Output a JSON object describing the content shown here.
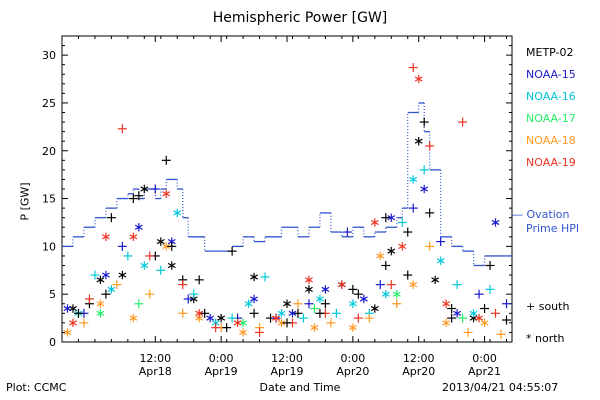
{
  "chart_data": {
    "type": "scatter",
    "title": "Hemispheric Power [GW]",
    "xlabel": "Date and Time",
    "ylabel": "P [GW]",
    "ylim": [
      0,
      32
    ],
    "yticks": [
      0,
      5,
      10,
      15,
      20,
      25,
      30
    ],
    "xlim": [
      "2013-04-17 19:00",
      "2013-04-21 05:00"
    ],
    "xticks": [
      {
        "t": "2013-04-18 12:00",
        "l1": "12:00",
        "l2": "Apr18"
      },
      {
        "t": "2013-04-19 00:00",
        "l1": "0:00",
        "l2": "Apr19"
      },
      {
        "t": "2013-04-19 12:00",
        "l1": "12:00",
        "l2": "Apr19"
      },
      {
        "t": "2013-04-20 00:00",
        "l1": "0:00",
        "l2": "Apr20"
      },
      {
        "t": "2013-04-20 12:00",
        "l1": "12:00",
        "l2": "Apr20"
      },
      {
        "t": "2013-04-21 00:00",
        "l1": "0:00",
        "l2": "Apr21"
      }
    ],
    "ovation": {
      "name": "Ovation Prime HPI",
      "legend": "— Ovation",
      "legend2": "Prime HPI",
      "color": "#3355cc",
      "values": [
        [
          "2013-04-17 19:00",
          10
        ],
        [
          "2013-04-17 21:00",
          11
        ],
        [
          "2013-04-17 23:00",
          12
        ],
        [
          "2013-04-18 01:00",
          13
        ],
        [
          "2013-04-18 03:00",
          14
        ],
        [
          "2013-04-18 05:00",
          15
        ],
        [
          "2013-04-18 07:00",
          15.5
        ],
        [
          "2013-04-18 08:00",
          16
        ],
        [
          "2013-04-18 09:00",
          15
        ],
        [
          "2013-04-18 10:00",
          16
        ],
        [
          "2013-04-18 12:00",
          15
        ],
        [
          "2013-04-18 13:00",
          16
        ],
        [
          "2013-04-18 14:00",
          17
        ],
        [
          "2013-04-18 16:00",
          16
        ],
        [
          "2013-04-18 17:00",
          13
        ],
        [
          "2013-04-18 18:00",
          11
        ],
        [
          "2013-04-18 21:00",
          9.5
        ],
        [
          "2013-04-19 00:00",
          9.5
        ],
        [
          "2013-04-19 02:00",
          10
        ],
        [
          "2013-04-19 04:00",
          11
        ],
        [
          "2013-04-19 06:00",
          10.5
        ],
        [
          "2013-04-19 08:00",
          11
        ],
        [
          "2013-04-19 11:00",
          12
        ],
        [
          "2013-04-19 14:00",
          11
        ],
        [
          "2013-04-19 16:00",
          12
        ],
        [
          "2013-04-19 18:00",
          13.5
        ],
        [
          "2013-04-19 20:00",
          11.5
        ],
        [
          "2013-04-19 22:00",
          11
        ],
        [
          "2013-04-20 00:00",
          12
        ],
        [
          "2013-04-20 02:00",
          11
        ],
        [
          "2013-04-20 04:00",
          11.5
        ],
        [
          "2013-04-20 06:00",
          12
        ],
        [
          "2013-04-20 08:00",
          13
        ],
        [
          "2013-04-20 09:00",
          14
        ],
        [
          "2013-04-20 10:00",
          24
        ],
        [
          "2013-04-20 12:00",
          25
        ],
        [
          "2013-04-20 13:00",
          22
        ],
        [
          "2013-04-20 14:00",
          18
        ],
        [
          "2013-04-20 16:00",
          11
        ],
        [
          "2013-04-20 18:00",
          10
        ],
        [
          "2013-04-20 20:00",
          9.5
        ],
        [
          "2013-04-20 22:00",
          8
        ],
        [
          "2013-04-21 00:00",
          9
        ],
        [
          "2013-04-21 03:00",
          9
        ]
      ]
    },
    "series": [
      {
        "name": "METP-02",
        "color": "#000000",
        "values": [
          [
            "2013-04-17 21:00",
            3.5
          ],
          [
            "2013-04-18 00:00",
            4
          ],
          [
            "2013-04-18 02:00",
            6.5
          ],
          [
            "2013-04-18 04:00",
            13
          ],
          [
            "2013-04-18 06:00",
            7
          ],
          [
            "2013-04-18 08:00",
            15
          ],
          [
            "2013-04-18 10:00",
            16
          ],
          [
            "2013-04-18 12:00",
            9
          ],
          [
            "2013-04-18 13:00",
            10.5
          ],
          [
            "2013-04-18 14:00",
            19
          ],
          [
            "2013-04-18 15:00",
            8
          ],
          [
            "2013-04-18 17:00",
            6.5
          ],
          [
            "2013-04-18 19:00",
            4.5
          ],
          [
            "2013-04-18 21:00",
            3
          ],
          [
            "2013-04-19 00:00",
            2.5
          ],
          [
            "2013-04-19 02:00",
            9.5
          ],
          [
            "2013-04-19 06:00",
            6.8
          ],
          [
            "2013-04-19 09:00",
            2.5
          ],
          [
            "2013-04-19 12:00",
            4
          ],
          [
            "2013-04-19 14:00",
            3
          ],
          [
            "2013-04-19 16:00",
            5.5
          ],
          [
            "2013-04-19 19:00",
            4
          ],
          [
            "2013-04-19 22:00",
            6
          ],
          [
            "2013-04-20 01:00",
            5
          ],
          [
            "2013-04-20 04:00",
            3.5
          ],
          [
            "2013-04-20 06:00",
            13
          ],
          [
            "2013-04-20 07:00",
            9.5
          ],
          [
            "2013-04-20 10:00",
            11.5
          ],
          [
            "2013-04-20 12:00",
            21
          ],
          [
            "2013-04-20 13:00",
            23
          ],
          [
            "2013-04-20 15:00",
            6.5
          ],
          [
            "2013-04-20 18:00",
            3.5
          ],
          [
            "2013-04-20 22:00",
            2.5
          ],
          [
            "2013-04-21 01:00",
            8
          ]
        ]
      },
      {
        "name": "NOAA-15",
        "color": "#1a1acc",
        "values": [
          [
            "2013-04-17 20:00",
            3.5
          ],
          [
            "2013-04-17 23:00",
            3
          ],
          [
            "2013-04-18 03:00",
            7
          ],
          [
            "2013-04-18 06:00",
            10
          ],
          [
            "2013-04-18 09:00",
            12
          ],
          [
            "2013-04-18 12:00",
            16
          ],
          [
            "2013-04-18 15:00",
            10.5
          ],
          [
            "2013-04-18 18:00",
            4.5
          ],
          [
            "2013-04-18 22:00",
            2.5
          ],
          [
            "2013-04-19 03:00",
            2.5
          ],
          [
            "2013-04-19 06:00",
            4.5
          ],
          [
            "2013-04-19 10:00",
            2.5
          ],
          [
            "2013-04-19 13:00",
            3
          ],
          [
            "2013-04-19 16:00",
            4
          ],
          [
            "2013-04-19 19:00",
            5.5
          ],
          [
            "2013-04-19 23:00",
            11.5
          ],
          [
            "2013-04-20 02:00",
            4.5
          ],
          [
            "2013-04-20 05:00",
            6
          ],
          [
            "2013-04-20 07:00",
            13
          ],
          [
            "2013-04-20 11:00",
            14
          ],
          [
            "2013-04-20 13:00",
            16
          ],
          [
            "2013-04-20 16:00",
            10.5
          ],
          [
            "2013-04-20 19:00",
            3
          ],
          [
            "2013-04-20 23:00",
            5
          ],
          [
            "2013-04-21 02:00",
            12.5
          ],
          [
            "2013-04-21 04:00",
            4
          ]
        ]
      },
      {
        "name": "NOAA-16",
        "color": "#00c8dc",
        "values": [
          [
            "2013-04-17 22:00",
            3
          ],
          [
            "2013-04-18 01:00",
            7
          ],
          [
            "2013-04-18 04:00",
            5.5
          ],
          [
            "2013-04-18 07:00",
            9
          ],
          [
            "2013-04-18 10:00",
            8
          ],
          [
            "2013-04-18 13:00",
            7.5
          ],
          [
            "2013-04-18 16:00",
            13.5
          ],
          [
            "2013-04-18 19:00",
            5
          ],
          [
            "2013-04-18 23:00",
            2
          ],
          [
            "2013-04-19 02:00",
            2.5
          ],
          [
            "2013-04-19 05:00",
            4
          ],
          [
            "2013-04-19 08:00",
            6.8
          ],
          [
            "2013-04-19 11:00",
            3
          ],
          [
            "2013-04-19 15:00",
            2.5
          ],
          [
            "2013-04-19 18:00",
            4.5
          ],
          [
            "2013-04-19 21:00",
            3
          ],
          [
            "2013-04-20 00:00",
            4
          ],
          [
            "2013-04-20 03:00",
            3
          ],
          [
            "2013-04-20 06:00",
            5
          ],
          [
            "2013-04-20 09:00",
            12.5
          ],
          [
            "2013-04-20 11:00",
            17
          ],
          [
            "2013-04-20 13:00",
            18
          ],
          [
            "2013-04-20 16:00",
            8.5
          ],
          [
            "2013-04-20 19:00",
            6
          ],
          [
            "2013-04-20 22:00",
            3
          ],
          [
            "2013-04-21 01:00",
            5.5
          ]
        ]
      },
      {
        "name": "NOAA-17",
        "color": "#22ee66",
        "values": [
          [
            "2013-04-18 02:00",
            3
          ],
          [
            "2013-04-18 09:00",
            4
          ],
          [
            "2013-04-19 04:00",
            2
          ],
          [
            "2013-04-19 17:00",
            3.5
          ],
          [
            "2013-04-20 08:00",
            5
          ],
          [
            "2013-04-20 20:00",
            2.5
          ]
        ]
      },
      {
        "name": "NOAA-18",
        "color": "#ff9922",
        "values": [
          [
            "2013-04-17 20:00",
            1
          ],
          [
            "2013-04-17 23:00",
            2
          ],
          [
            "2013-04-18 02:00",
            4
          ],
          [
            "2013-04-18 05:00",
            6
          ],
          [
            "2013-04-18 08:00",
            2.5
          ],
          [
            "2013-04-18 11:00",
            5
          ],
          [
            "2013-04-18 14:00",
            10
          ],
          [
            "2013-04-18 17:00",
            3
          ],
          [
            "2013-04-18 20:00",
            2.5
          ],
          [
            "2013-04-19 00:00",
            1.5
          ],
          [
            "2013-04-19 04:00",
            1
          ],
          [
            "2013-04-19 07:00",
            1.5
          ],
          [
            "2013-04-19 11:00",
            2
          ],
          [
            "2013-04-19 14:00",
            4
          ],
          [
            "2013-04-19 17:00",
            1.5
          ],
          [
            "2013-04-19 20:00",
            2
          ],
          [
            "2013-04-20 00:00",
            1.5
          ],
          [
            "2013-04-20 03:00",
            2.5
          ],
          [
            "2013-04-20 05:00",
            9
          ],
          [
            "2013-04-20 08:00",
            4
          ],
          [
            "2013-04-20 11:00",
            6
          ],
          [
            "2013-04-20 14:00",
            10
          ],
          [
            "2013-04-20 17:00",
            2
          ],
          [
            "2013-04-20 21:00",
            1
          ],
          [
            "2013-04-21 00:00",
            2
          ],
          [
            "2013-04-21 03:00",
            0.8
          ]
        ]
      },
      {
        "name": "NOAA-19",
        "color": "#ee3322",
        "values": [
          [
            "2013-04-17 21:00",
            2
          ],
          [
            "2013-04-18 00:00",
            4.5
          ],
          [
            "2013-04-18 03:00",
            11
          ],
          [
            "2013-04-18 06:00",
            22.3
          ],
          [
            "2013-04-18 08:00",
            11
          ],
          [
            "2013-04-18 11:00",
            9
          ],
          [
            "2013-04-18 14:00",
            15.5
          ],
          [
            "2013-04-18 17:00",
            6
          ],
          [
            "2013-04-18 20:00",
            3
          ],
          [
            "2013-04-18 23:00",
            1.5
          ],
          [
            "2013-04-19 03:00",
            2
          ],
          [
            "2013-04-19 07:00",
            1
          ],
          [
            "2013-04-19 10:00",
            2.5
          ],
          [
            "2013-04-19 13:00",
            2
          ],
          [
            "2013-04-19 16:00",
            6.5
          ],
          [
            "2013-04-19 19:00",
            3
          ],
          [
            "2013-04-19 22:00",
            6
          ],
          [
            "2013-04-20 01:00",
            2.5
          ],
          [
            "2013-04-20 04:00",
            12.5
          ],
          [
            "2013-04-20 07:00",
            6
          ],
          [
            "2013-04-20 09:00",
            10
          ],
          [
            "2013-04-20 11:00",
            28.7
          ],
          [
            "2013-04-20 12:00",
            27.5
          ],
          [
            "2013-04-20 14:00",
            20.5
          ],
          [
            "2013-04-20 17:00",
            4
          ],
          [
            "2013-04-20 20:00",
            23
          ],
          [
            "2013-04-20 23:00",
            2.5
          ],
          [
            "2013-04-21 02:00",
            3
          ]
        ]
      }
    ],
    "south_values": [
      [
        "2013-04-17 22:00",
        3
      ],
      [
        "2013-04-18 03:00",
        5
      ],
      [
        "2013-04-18 09:00",
        15.3
      ],
      [
        "2013-04-18 15:00",
        10
      ],
      [
        "2013-04-18 20:00",
        6.5
      ],
      [
        "2013-04-19 01:00",
        1.5
      ],
      [
        "2013-04-19 06:00",
        3
      ],
      [
        "2013-04-19 12:00",
        2
      ],
      [
        "2013-04-19 18:00",
        3
      ],
      [
        "2013-04-20 00:00",
        5.5
      ],
      [
        "2013-04-20 06:00",
        8
      ],
      [
        "2013-04-20 10:00",
        7
      ],
      [
        "2013-04-20 14:00",
        13.5
      ],
      [
        "2013-04-20 18:00",
        2.5
      ],
      [
        "2013-04-21 00:00",
        3.5
      ],
      [
        "2013-04-21 04:00",
        2.3
      ]
    ],
    "symbols_legend": {
      "south": "+ south",
      "north": "* north"
    }
  },
  "footer": {
    "left": "Plot: CCMC",
    "right": "2013/04/21 04:55:07"
  }
}
